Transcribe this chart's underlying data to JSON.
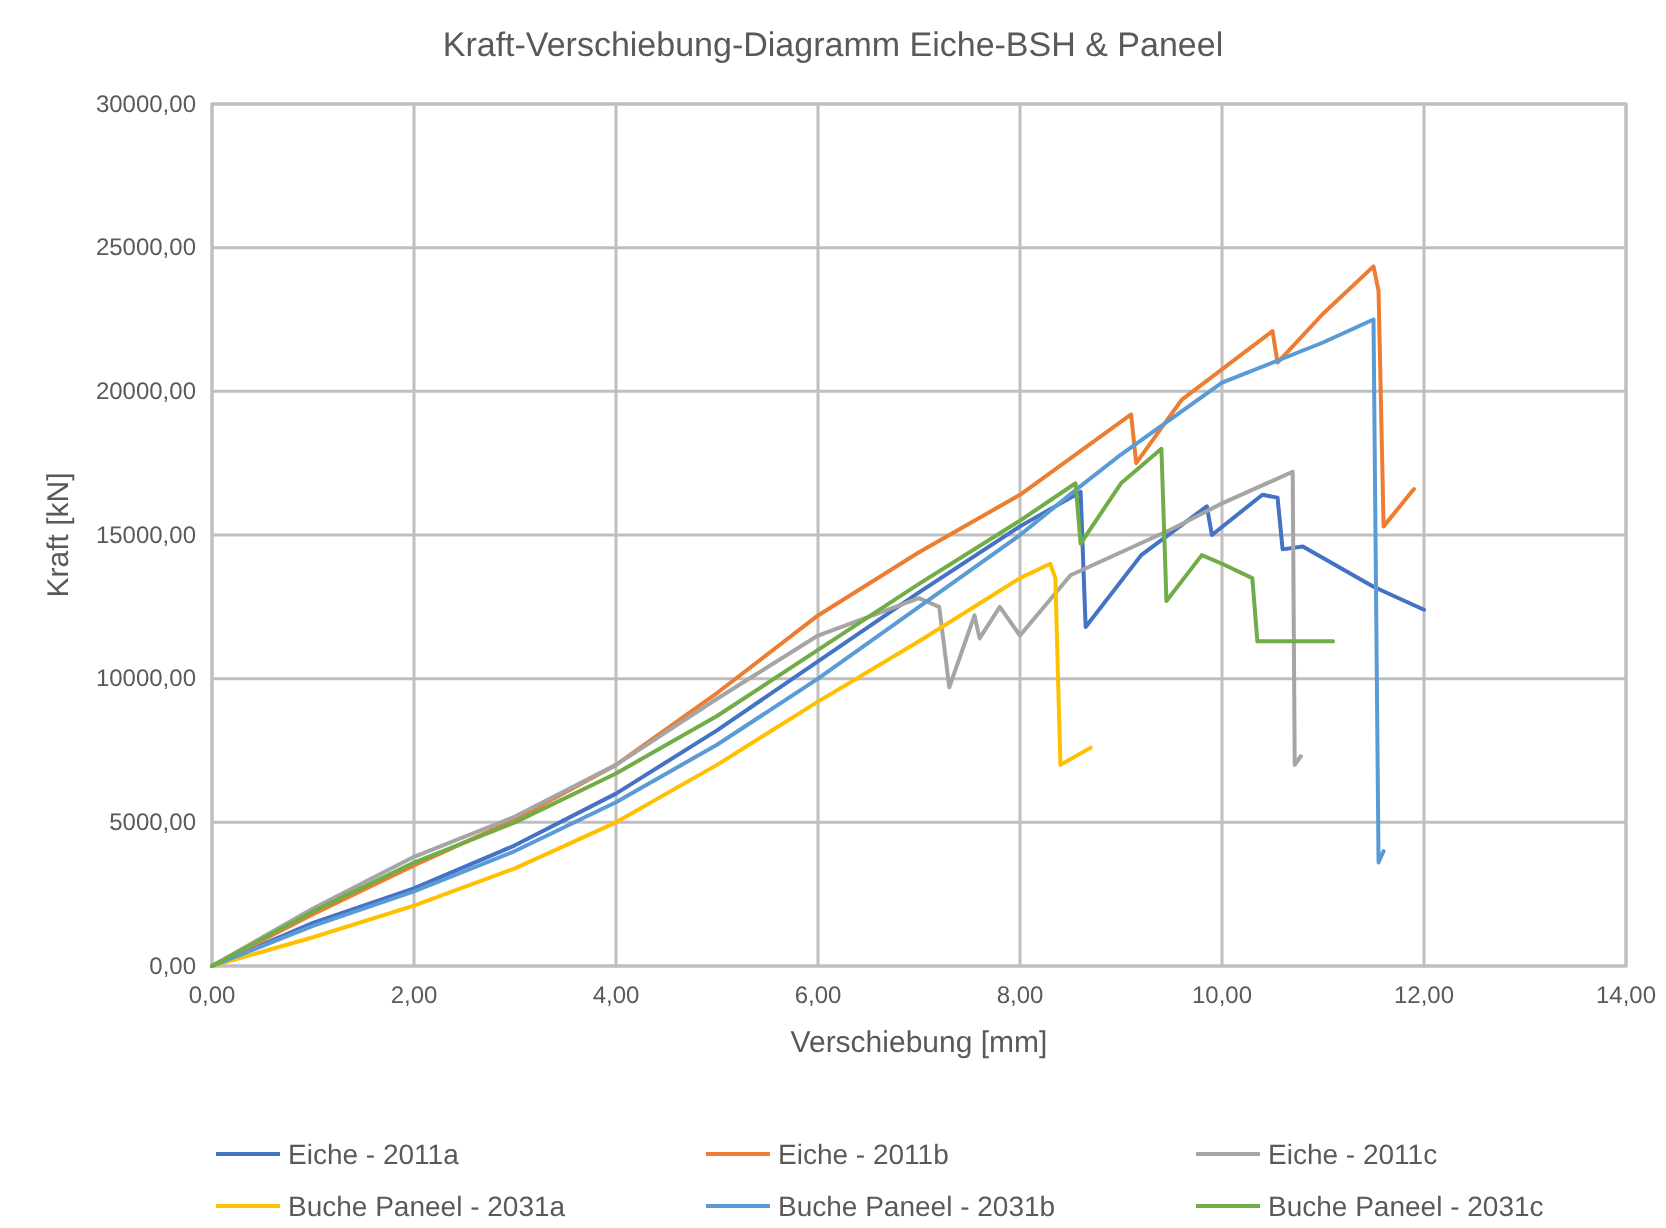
{
  "chart_data": {
    "type": "line",
    "title": "Kraft-Verschiebung-Diagramm Eiche-BSH & Paneel",
    "xlabel": "Verschiebung [mm]",
    "ylabel": "Kraft [kN]",
    "xlim": [
      0,
      14
    ],
    "ylim": [
      0,
      30000
    ],
    "xticks": [
      {
        "value": 0,
        "label": "0,00"
      },
      {
        "value": 2,
        "label": "2,00"
      },
      {
        "value": 4,
        "label": "4,00"
      },
      {
        "value": 6,
        "label": "6,00"
      },
      {
        "value": 8,
        "label": "8,00"
      },
      {
        "value": 10,
        "label": "10,00"
      },
      {
        "value": 12,
        "label": "12,00"
      },
      {
        "value": 14,
        "label": "14,00"
      }
    ],
    "yticks": [
      {
        "value": 0,
        "label": "0,00"
      },
      {
        "value": 5000,
        "label": "5000,00"
      },
      {
        "value": 10000,
        "label": "10000,00"
      },
      {
        "value": 15000,
        "label": "15000,00"
      },
      {
        "value": 20000,
        "label": "20000,00"
      },
      {
        "value": 25000,
        "label": "25000,00"
      },
      {
        "value": 30000,
        "label": "30000,00"
      }
    ],
    "grid": true,
    "legend": "bottom",
    "line_style": "solid",
    "marker": "none",
    "series": [
      {
        "name": "Eiche - 2011a",
        "color": "#4472c4",
        "x": [
          0,
          1,
          2,
          3,
          4,
          5,
          6,
          7,
          8,
          8.6,
          8.65,
          9.2,
          9.85,
          9.9,
          10.4,
          10.55,
          10.6,
          10.8,
          11.2,
          11.5,
          12
        ],
        "values": [
          0,
          1500,
          2700,
          4200,
          6000,
          8200,
          10600,
          13000,
          15300,
          16500,
          11800,
          14300,
          16000,
          15000,
          16400,
          16300,
          14500,
          14600,
          13800,
          13200,
          12400
        ]
      },
      {
        "name": "Eiche - 2011b",
        "color": "#ed7d31",
        "x": [
          0,
          1,
          2,
          3,
          4,
          5,
          6,
          7,
          8,
          9.1,
          9.15,
          9.6,
          10.5,
          10.55,
          11,
          11.5,
          11.55,
          11.6,
          11.9
        ],
        "values": [
          0,
          1800,
          3500,
          5100,
          7000,
          9500,
          12200,
          14400,
          16400,
          19200,
          17500,
          19700,
          22100,
          21000,
          22700,
          24350,
          23500,
          15300,
          16600
        ]
      },
      {
        "name": "Eiche - 2011c",
        "color": "#a5a5a5",
        "x": [
          0,
          1,
          2,
          3,
          4,
          5,
          6,
          7,
          7.2,
          7.3,
          7.55,
          7.6,
          7.8,
          8,
          8.5,
          9,
          9.5,
          10,
          10.7,
          10.72,
          10.78
        ],
        "values": [
          0,
          2000,
          3800,
          5200,
          7000,
          9300,
          11500,
          12800,
          12500,
          9700,
          12200,
          11400,
          12500,
          11500,
          13600,
          14400,
          15200,
          16100,
          17200,
          7000,
          7300
        ]
      },
      {
        "name": "Buche Paneel - 2031a",
        "color": "#ffc000",
        "x": [
          0,
          1,
          2,
          3,
          4,
          5,
          6,
          7,
          8,
          8.3,
          8.35,
          8.4,
          8.7
        ],
        "values": [
          0,
          1000,
          2100,
          3400,
          5000,
          7000,
          9200,
          11300,
          13500,
          14000,
          13500,
          7000,
          7600
        ]
      },
      {
        "name": "Buche Paneel - 2031b",
        "color": "#5b9bd5",
        "x": [
          0,
          1,
          2,
          3,
          4,
          5,
          6,
          7,
          8,
          8.6,
          9,
          10,
          11,
          11.5,
          11.55,
          11.6
        ],
        "values": [
          0,
          1400,
          2600,
          4000,
          5700,
          7700,
          10000,
          12500,
          15000,
          16700,
          17800,
          20300,
          21700,
          22500,
          3600,
          4000
        ]
      },
      {
        "name": "Buche Paneel - 2031c",
        "color": "#70ad47",
        "x": [
          0,
          1,
          2,
          3,
          4,
          5,
          6,
          7,
          8,
          8.55,
          8.6,
          9,
          9.4,
          9.45,
          9.8,
          10,
          10.3,
          10.35,
          11.1
        ],
        "values": [
          0,
          1900,
          3600,
          5000,
          6700,
          8700,
          11000,
          13300,
          15500,
          16800,
          14700,
          16800,
          18000,
          12700,
          14300,
          14000,
          13500,
          11300,
          11300
        ]
      }
    ]
  }
}
